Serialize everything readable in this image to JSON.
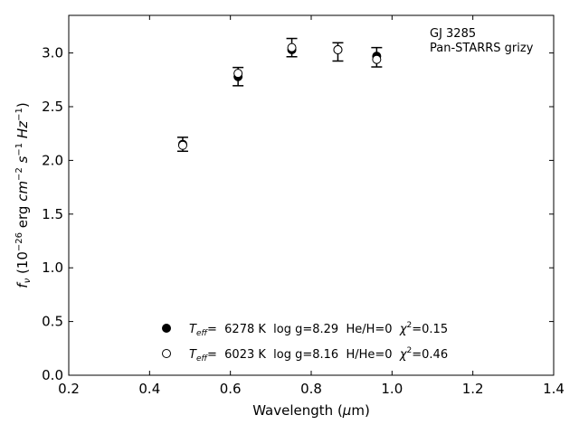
{
  "chart_data": {
    "type": "scatter",
    "title": "",
    "xlabel_main": "Wavelength (",
    "xlabel_unit_mu": "μ",
    "xlabel_unit_tail": "m)",
    "ylabel_f": "f",
    "ylabel_sub": "ν",
    "ylabel_open": " (10",
    "ylabel_exp1": "−26",
    "ylabel_erg": " erg ",
    "ylabel_cm": "cm",
    "ylabel_exp2": "−2",
    "ylabel_s": " s",
    "ylabel_exp3": "−1",
    "ylabel_hz": " Hz",
    "ylabel_exp4": "−1",
    "ylabel_close": ")",
    "xlim": [
      0.2,
      1.4
    ],
    "ylim": [
      0.0,
      3.35
    ],
    "xticks": [
      0.2,
      0.4,
      0.6,
      0.8,
      1.0,
      1.2,
      1.4
    ],
    "xtick_labels": [
      "0.2",
      "0.4",
      "0.6",
      "0.8",
      "1.0",
      "1.2",
      "1.4"
    ],
    "yticks": [
      0.0,
      0.5,
      1.0,
      1.5,
      2.0,
      2.5,
      3.0
    ],
    "ytick_labels": [
      "0.0",
      "0.5",
      "1.0",
      "1.5",
      "2.0",
      "2.5",
      "3.0"
    ],
    "grid": false,
    "annotation": [
      "GJ 3285",
      "Pan-STARRS grizy"
    ],
    "observed": {
      "x": [
        0.482,
        0.619,
        0.752,
        0.866,
        0.962
      ],
      "y": [
        2.15,
        2.78,
        3.05,
        3.01,
        2.96
      ],
      "err": [
        0.065,
        0.085,
        0.085,
        0.085,
        0.09
      ]
    },
    "series": [
      {
        "marker": "filled",
        "x": [
          0.482,
          0.619,
          0.752,
          0.866,
          0.962
        ],
        "y": [
          2.15,
          2.78,
          3.03,
          3.03,
          2.97
        ],
        "legend": {
          "teff_t": "T",
          "teff_sub": "eff",
          "eq": "=  6278 K  log g=8.29  He/H=0  ",
          "chi": "χ",
          "chi_exp": "2",
          "chi_val": "=0.15"
        }
      },
      {
        "marker": "open",
        "x": [
          0.482,
          0.619,
          0.752,
          0.866,
          0.962
        ],
        "y": [
          2.14,
          2.81,
          3.05,
          3.03,
          2.94
        ],
        "legend": {
          "teff_t": "T",
          "teff_sub": "eff",
          "eq": "=  6023 K  log g=8.16  H/He=0  ",
          "chi": "χ",
          "chi_exp": "2",
          "chi_val": "=0.46"
        }
      }
    ],
    "legend_position": "lower-center"
  }
}
